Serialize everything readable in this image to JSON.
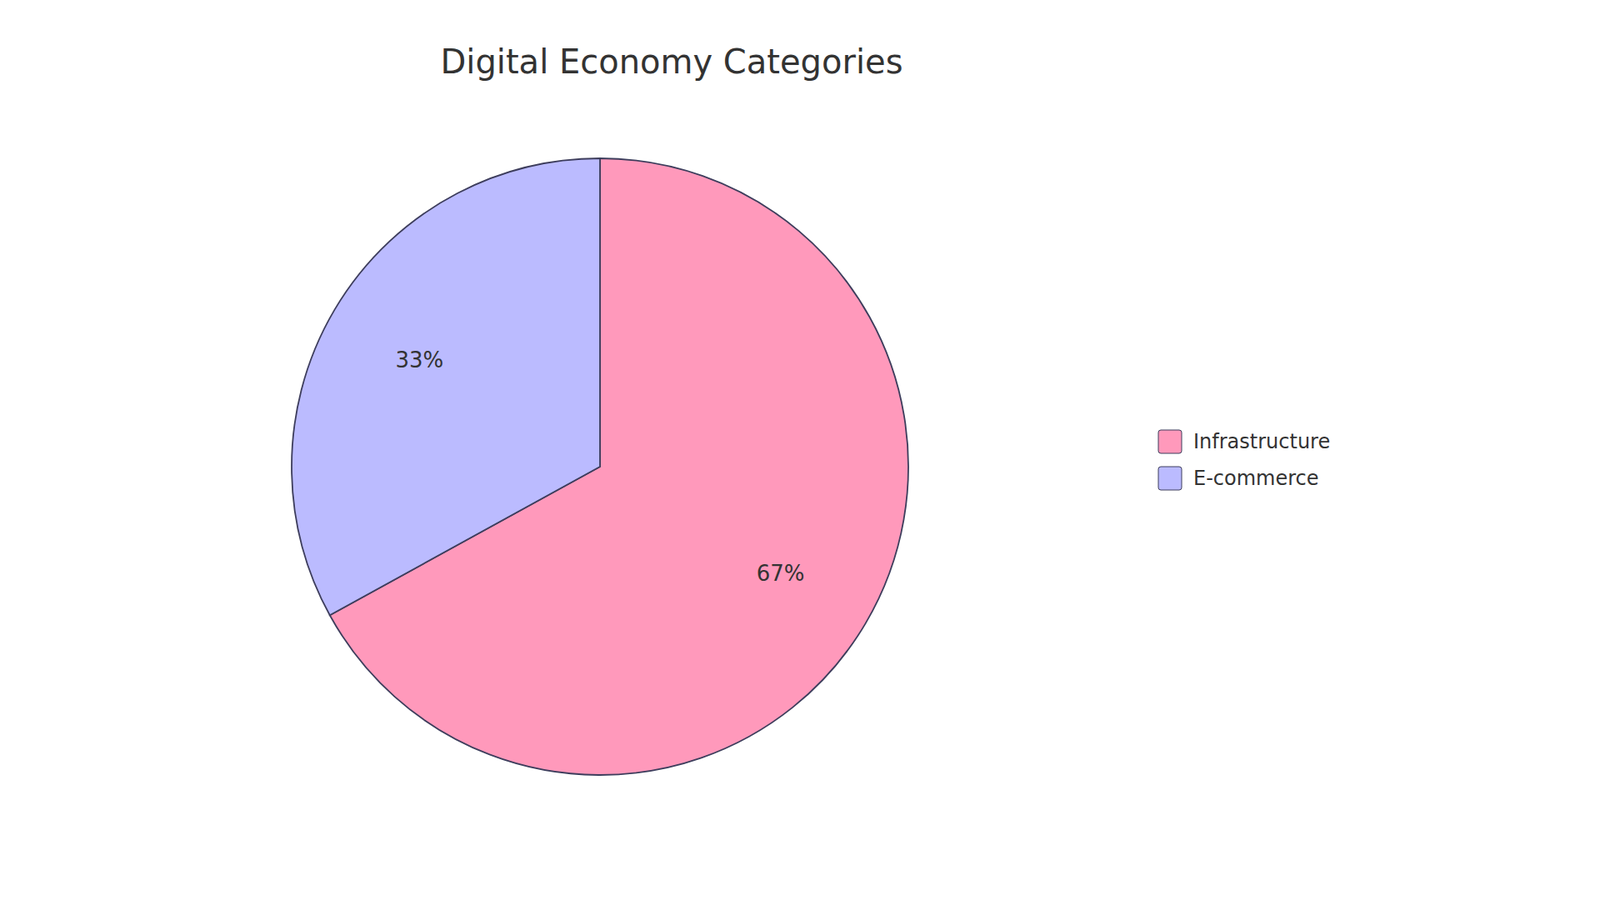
{
  "chart_data": {
    "type": "pie",
    "title": "Digital Economy Categories",
    "categories": [
      "Infrastructure",
      "E-commerce"
    ],
    "values": [
      67,
      33
    ],
    "value_labels": [
      "67%",
      "33%"
    ],
    "colors": [
      "#FF99BB",
      "#BBBBFF"
    ],
    "data_labels": true,
    "legend": "right"
  }
}
